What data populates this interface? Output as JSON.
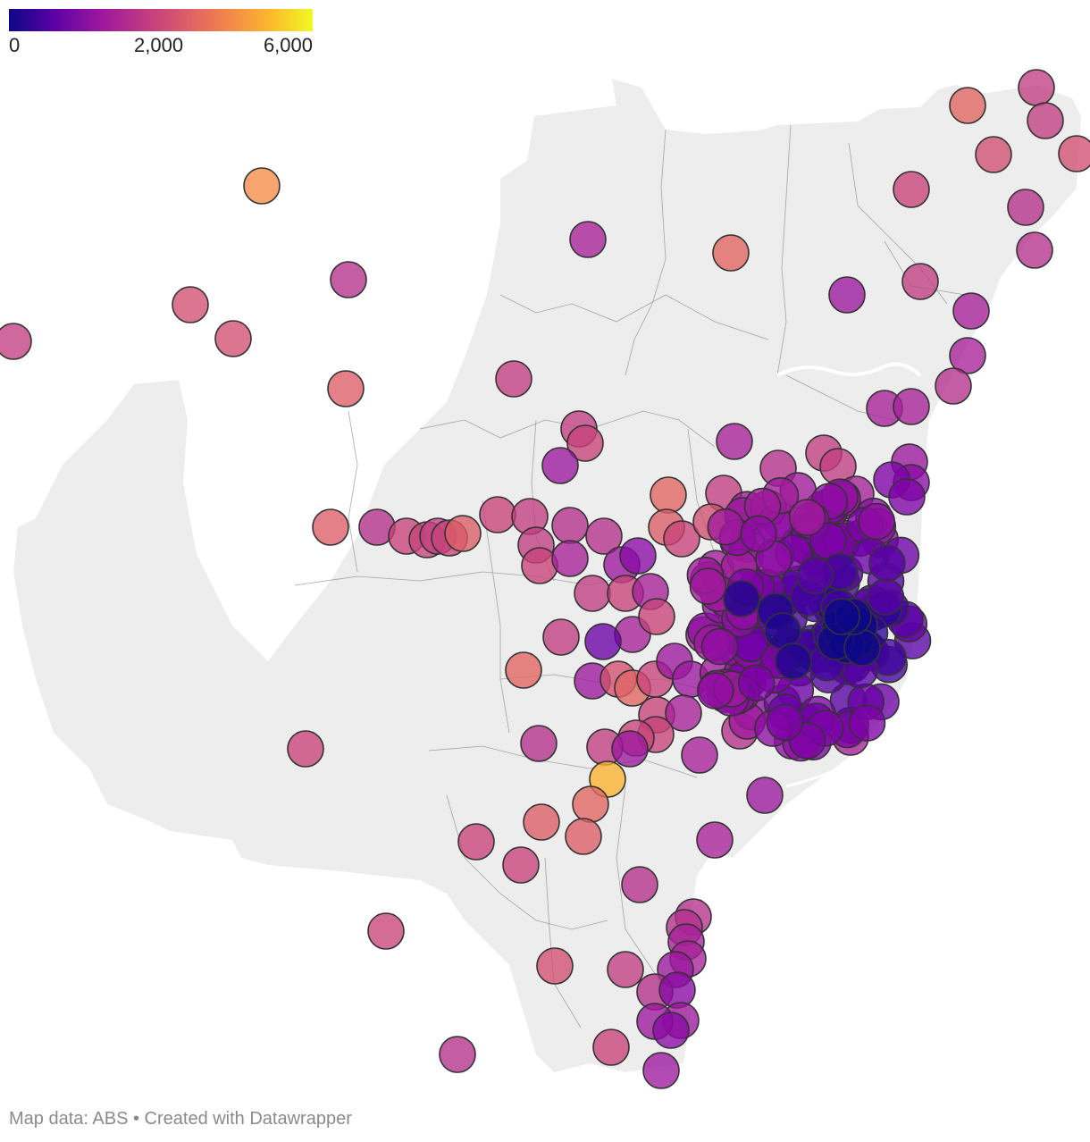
{
  "legend": {
    "ticks": [
      "0",
      "2,000",
      "6,000"
    ],
    "gradient_stops": [
      "#0d0887",
      "#5c01a6",
      "#9c179e",
      "#cc4778",
      "#ed7953",
      "#fdb42f",
      "#f0f921"
    ]
  },
  "map": {
    "land_color": "#ededed",
    "border_color": "#8c8c8c",
    "marker_stroke": "#333333",
    "marker_opacity": 0.78
  },
  "footer": {
    "text": "Map data: ABS • Created with Datawrapper"
  }
}
